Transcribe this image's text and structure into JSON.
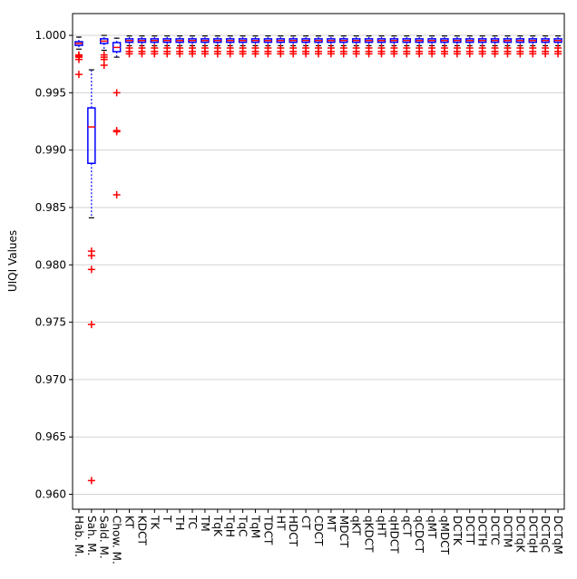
{
  "chart_data": {
    "type": "box",
    "ylabel": "UIQI Values",
    "categories": [
      "Hab. M.",
      "Sah. M.",
      "Sald. M.",
      "Chow. M.",
      "KT",
      "KDCT",
      "TK",
      "T",
      "TH",
      "TC",
      "TM",
      "TqK",
      "TqH",
      "TqC",
      "TqM",
      "TDCT",
      "HT",
      "HDCT",
      "CT",
      "CDCT",
      "MT",
      "MDCT",
      "qKT",
      "qKDCT",
      "qHT",
      "qHDCT",
      "qCT",
      "qCDCT",
      "qMT",
      "qMDCT",
      "DCTK",
      "DCTT",
      "DCTH",
      "DCTC",
      "DCTM",
      "DCTqK",
      "DCTqH",
      "DCTqC",
      "DCTqM"
    ],
    "boxes": [
      {
        "whislo": 0.9988,
        "q1": 0.99913,
        "med": 0.9993,
        "q3": 0.99945,
        "whishi": 0.99985,
        "fliers": [
          0.9983,
          0.9982,
          0.9981,
          0.9979,
          0.9966
        ]
      },
      {
        "whislo": 0.9841,
        "q1": 0.98885,
        "med": 0.99202,
        "q3": 0.99368,
        "whishi": 0.997,
        "fliers": [
          0.9812,
          0.9808,
          0.9796,
          0.9748,
          0.9612
        ]
      },
      {
        "whislo": 0.9987,
        "q1": 0.9993,
        "med": 0.9995,
        "q3": 0.9997,
        "whishi": 1.0,
        "fliers": [
          0.9983,
          0.9981,
          0.9979,
          0.9974
        ]
      },
      {
        "whislo": 0.9981,
        "q1": 0.99858,
        "med": 0.99895,
        "q3": 0.99937,
        "whishi": 0.99976,
        "fliers": [
          0.995,
          0.9917,
          0.9916,
          0.9861
        ]
      },
      {
        "whislo": 0.9991,
        "q1": 0.9994,
        "med": 0.99955,
        "q3": 0.9997,
        "whishi": 0.99995,
        "fliers": [
          0.9989,
          0.9986,
          0.9984
        ]
      },
      {
        "whislo": 0.9991,
        "q1": 0.9994,
        "med": 0.99955,
        "q3": 0.9997,
        "whishi": 0.99995,
        "fliers": [
          0.9989,
          0.9986,
          0.9984
        ]
      },
      {
        "whislo": 0.9991,
        "q1": 0.9994,
        "med": 0.99955,
        "q3": 0.9997,
        "whishi": 0.99995,
        "fliers": [
          0.9989,
          0.9986,
          0.9984
        ]
      },
      {
        "whislo": 0.9991,
        "q1": 0.9994,
        "med": 0.99955,
        "q3": 0.9997,
        "whishi": 0.99995,
        "fliers": [
          0.9989,
          0.9986,
          0.9984
        ]
      },
      {
        "whislo": 0.9991,
        "q1": 0.9994,
        "med": 0.99955,
        "q3": 0.9997,
        "whishi": 0.99995,
        "fliers": [
          0.9989,
          0.9986,
          0.9984
        ]
      },
      {
        "whislo": 0.9991,
        "q1": 0.9994,
        "med": 0.99955,
        "q3": 0.9997,
        "whishi": 0.99995,
        "fliers": [
          0.9989,
          0.9986,
          0.9984
        ]
      },
      {
        "whislo": 0.9991,
        "q1": 0.9994,
        "med": 0.99955,
        "q3": 0.9997,
        "whishi": 0.99995,
        "fliers": [
          0.9989,
          0.9986,
          0.9984
        ]
      },
      {
        "whislo": 0.9991,
        "q1": 0.9994,
        "med": 0.99955,
        "q3": 0.9997,
        "whishi": 0.99995,
        "fliers": [
          0.9989,
          0.9986,
          0.9984
        ]
      },
      {
        "whislo": 0.9991,
        "q1": 0.9994,
        "med": 0.99955,
        "q3": 0.9997,
        "whishi": 0.99995,
        "fliers": [
          0.9989,
          0.9986,
          0.9984
        ]
      },
      {
        "whislo": 0.9991,
        "q1": 0.9994,
        "med": 0.99955,
        "q3": 0.9997,
        "whishi": 0.99995,
        "fliers": [
          0.9989,
          0.9986,
          0.9984
        ]
      },
      {
        "whislo": 0.9991,
        "q1": 0.9994,
        "med": 0.99955,
        "q3": 0.9997,
        "whishi": 0.99995,
        "fliers": [
          0.9989,
          0.9986,
          0.9984
        ]
      },
      {
        "whislo": 0.9991,
        "q1": 0.9994,
        "med": 0.99955,
        "q3": 0.9997,
        "whishi": 0.99995,
        "fliers": [
          0.9989,
          0.9986,
          0.9984
        ]
      },
      {
        "whislo": 0.9991,
        "q1": 0.9994,
        "med": 0.99955,
        "q3": 0.9997,
        "whishi": 0.99995,
        "fliers": [
          0.9989,
          0.9986,
          0.9984
        ]
      },
      {
        "whislo": 0.9991,
        "q1": 0.9994,
        "med": 0.99955,
        "q3": 0.9997,
        "whishi": 0.99995,
        "fliers": [
          0.9989,
          0.9986,
          0.9984
        ]
      },
      {
        "whislo": 0.9991,
        "q1": 0.9994,
        "med": 0.99955,
        "q3": 0.9997,
        "whishi": 0.99995,
        "fliers": [
          0.9989,
          0.9986,
          0.9984
        ]
      },
      {
        "whislo": 0.9991,
        "q1": 0.9994,
        "med": 0.99955,
        "q3": 0.9997,
        "whishi": 0.99995,
        "fliers": [
          0.9989,
          0.9986,
          0.9984
        ]
      },
      {
        "whislo": 0.9991,
        "q1": 0.9994,
        "med": 0.99955,
        "q3": 0.9997,
        "whishi": 0.99995,
        "fliers": [
          0.9989,
          0.9986,
          0.9984
        ]
      },
      {
        "whislo": 0.9991,
        "q1": 0.9994,
        "med": 0.99955,
        "q3": 0.9997,
        "whishi": 0.99995,
        "fliers": [
          0.9989,
          0.9986,
          0.9984
        ]
      },
      {
        "whislo": 0.9991,
        "q1": 0.9994,
        "med": 0.99955,
        "q3": 0.9997,
        "whishi": 0.99995,
        "fliers": [
          0.9989,
          0.9986,
          0.9984
        ]
      },
      {
        "whislo": 0.9991,
        "q1": 0.9994,
        "med": 0.99955,
        "q3": 0.9997,
        "whishi": 0.99995,
        "fliers": [
          0.9989,
          0.9986,
          0.9984
        ]
      },
      {
        "whislo": 0.9991,
        "q1": 0.9994,
        "med": 0.99955,
        "q3": 0.9997,
        "whishi": 0.99995,
        "fliers": [
          0.9989,
          0.9986,
          0.9984
        ]
      },
      {
        "whislo": 0.9991,
        "q1": 0.9994,
        "med": 0.99955,
        "q3": 0.9997,
        "whishi": 0.99995,
        "fliers": [
          0.9989,
          0.9986,
          0.9984
        ]
      },
      {
        "whislo": 0.9991,
        "q1": 0.9994,
        "med": 0.99955,
        "q3": 0.9997,
        "whishi": 0.99995,
        "fliers": [
          0.9989,
          0.9986,
          0.9984
        ]
      },
      {
        "whislo": 0.9991,
        "q1": 0.9994,
        "med": 0.99955,
        "q3": 0.9997,
        "whishi": 0.99995,
        "fliers": [
          0.9989,
          0.9986,
          0.9984
        ]
      },
      {
        "whislo": 0.9991,
        "q1": 0.9994,
        "med": 0.99955,
        "q3": 0.9997,
        "whishi": 0.99995,
        "fliers": [
          0.9989,
          0.9986,
          0.9984
        ]
      },
      {
        "whislo": 0.9991,
        "q1": 0.9994,
        "med": 0.99955,
        "q3": 0.9997,
        "whishi": 0.99995,
        "fliers": [
          0.9989,
          0.9986,
          0.9984
        ]
      },
      {
        "whislo": 0.9991,
        "q1": 0.9994,
        "med": 0.99955,
        "q3": 0.9997,
        "whishi": 0.99995,
        "fliers": [
          0.9989,
          0.9986,
          0.9984
        ]
      },
      {
        "whislo": 0.9991,
        "q1": 0.9994,
        "med": 0.99955,
        "q3": 0.9997,
        "whishi": 0.99995,
        "fliers": [
          0.9989,
          0.9986,
          0.9984
        ]
      },
      {
        "whislo": 0.9991,
        "q1": 0.9994,
        "med": 0.99955,
        "q3": 0.9997,
        "whishi": 0.99995,
        "fliers": [
          0.9989,
          0.9986,
          0.9984
        ]
      },
      {
        "whislo": 0.9991,
        "q1": 0.9994,
        "med": 0.99955,
        "q3": 0.9997,
        "whishi": 0.99995,
        "fliers": [
          0.9989,
          0.9986,
          0.9984
        ]
      },
      {
        "whislo": 0.9991,
        "q1": 0.9994,
        "med": 0.99955,
        "q3": 0.9997,
        "whishi": 0.99995,
        "fliers": [
          0.9989,
          0.9986,
          0.9984
        ]
      },
      {
        "whislo": 0.9991,
        "q1": 0.9994,
        "med": 0.99955,
        "q3": 0.9997,
        "whishi": 0.99995,
        "fliers": [
          0.9989,
          0.9986,
          0.9984
        ]
      },
      {
        "whislo": 0.9991,
        "q1": 0.9994,
        "med": 0.99955,
        "q3": 0.9997,
        "whishi": 0.99995,
        "fliers": [
          0.9989,
          0.9986,
          0.9984
        ]
      },
      {
        "whislo": 0.9991,
        "q1": 0.9994,
        "med": 0.99955,
        "q3": 0.9997,
        "whishi": 0.99995,
        "fliers": [
          0.9989,
          0.9986,
          0.9984
        ]
      },
      {
        "whislo": 0.9991,
        "q1": 0.9994,
        "med": 0.99955,
        "q3": 0.9997,
        "whishi": 0.99995,
        "fliers": [
          0.9989,
          0.9986,
          0.9984
        ]
      }
    ],
    "box_color": "#0000ff",
    "median_color": "#ff0000",
    "flier_color": "#ff0000",
    "cap_color": "#000000",
    "ylim": [
      0.9587,
      1.0019
    ],
    "yticks": [
      {
        "value": 0.96,
        "label": "0.960"
      },
      {
        "value": 0.965,
        "label": "0.965"
      },
      {
        "value": 0.97,
        "label": "0.970"
      },
      {
        "value": 0.975,
        "label": "0.975"
      },
      {
        "value": 0.98,
        "label": "0.980"
      },
      {
        "value": 0.985,
        "label": "0.985"
      },
      {
        "value": 0.99,
        "label": "0.990"
      },
      {
        "value": 0.995,
        "label": "0.995"
      },
      {
        "value": 1.0,
        "label": "1.000"
      }
    ],
    "grid": true
  }
}
